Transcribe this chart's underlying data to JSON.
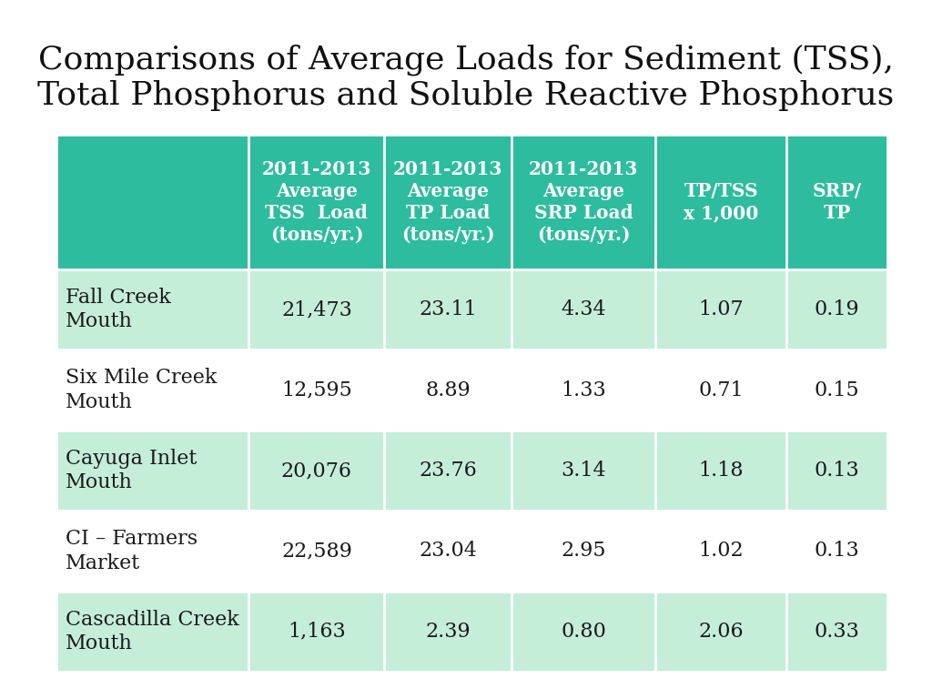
{
  "title_line1": "Comparisons of Average Loads for Sediment (TSS),",
  "title_line2": "Total Phosphorus and Soluble Reactive Phosphorus",
  "title_fontsize": 26,
  "background_color": "#ffffff",
  "header_bg_color": "#2ebc9e",
  "row_bg_even": "#c5eed9",
  "row_bg_odd": "#ffffff",
  "header_text_color": "#ffffff",
  "body_text_color": "#1a1a1a",
  "col_headers": [
    "2011-2013\nAverage\nTSS  Load\n(tons/yr.)",
    "2011-2013\nAverage\nTP Load\n(tons/yr.)",
    "2011-2013\nAverage\nSRP Load\n(tons/yr.)",
    "TP/TSS\nx 1,000",
    "SRP/\nTP"
  ],
  "row_labels": [
    "Fall Creek\nMouth",
    "Six Mile Creek\nMouth",
    "Cayuga Inlet\nMouth",
    "CI – Farmers\nMarket",
    "Cascadilla Creek\nMouth"
  ],
  "table_data": [
    [
      "21,473",
      "23.11",
      "4.34",
      "1.07",
      "0.19"
    ],
    [
      "12,595",
      "8.89",
      "1.33",
      "0.71",
      "0.15"
    ],
    [
      "20,076",
      "23.76",
      "3.14",
      "1.18",
      "0.13"
    ],
    [
      "22,589",
      "23.04",
      "2.95",
      "1.02",
      "0.13"
    ],
    [
      "1,163",
      "2.39",
      "0.80",
      "2.06",
      "0.33"
    ]
  ],
  "header_fontsize": 14.5,
  "cell_fontsize": 16,
  "label_fontsize": 16
}
